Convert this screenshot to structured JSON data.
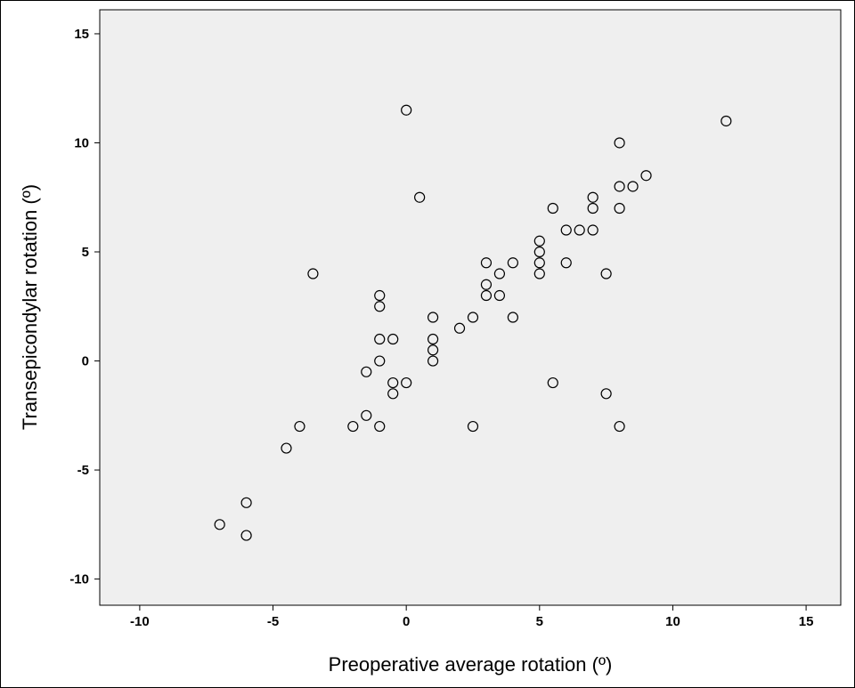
{
  "chart_data": {
    "type": "scatter",
    "title": "",
    "xlabel": "Preoperative average rotation (º)",
    "ylabel": "Transepicondylar rotation (º)",
    "xlim": [
      -11.5,
      16.3
    ],
    "ylim": [
      -11.2,
      16.1
    ],
    "x_ticks": [
      -10,
      -5,
      0,
      5,
      10,
      15
    ],
    "y_ticks": [
      -10,
      -5,
      0,
      5,
      10,
      15
    ],
    "x_tick_labels": [
      "-10",
      "-5",
      "0",
      "5",
      "10",
      "15"
    ],
    "y_tick_labels": [
      "-10",
      "-5",
      "0",
      "5",
      "10",
      "15"
    ],
    "grid": false,
    "marker": "open-circle",
    "plot_background": "#efefef",
    "marker_color": "#000000",
    "points": [
      {
        "x": 0,
        "y": 11.5
      },
      {
        "x": 12,
        "y": 11
      },
      {
        "x": 8,
        "y": 10
      },
      {
        "x": 9,
        "y": 8.5
      },
      {
        "x": 8,
        "y": 8
      },
      {
        "x": 8.5,
        "y": 8
      },
      {
        "x": 0.5,
        "y": 7.5
      },
      {
        "x": 7,
        "y": 7.5
      },
      {
        "x": 5.5,
        "y": 7
      },
      {
        "x": 7,
        "y": 7
      },
      {
        "x": 8,
        "y": 7
      },
      {
        "x": 6,
        "y": 6
      },
      {
        "x": 6.5,
        "y": 6
      },
      {
        "x": 7,
        "y": 6
      },
      {
        "x": 5,
        "y": 5.5
      },
      {
        "x": 5,
        "y": 5
      },
      {
        "x": 3,
        "y": 4.5
      },
      {
        "x": 4,
        "y": 4.5
      },
      {
        "x": 5,
        "y": 4.5
      },
      {
        "x": 6,
        "y": 4.5
      },
      {
        "x": -3.5,
        "y": 4
      },
      {
        "x": 3.5,
        "y": 4
      },
      {
        "x": 5,
        "y": 4
      },
      {
        "x": 7.5,
        "y": 4
      },
      {
        "x": 3,
        "y": 3.5
      },
      {
        "x": -1,
        "y": 3
      },
      {
        "x": 3,
        "y": 3
      },
      {
        "x": 3.5,
        "y": 3
      },
      {
        "x": -1,
        "y": 2.5
      },
      {
        "x": 1,
        "y": 2
      },
      {
        "x": 2.5,
        "y": 2
      },
      {
        "x": 4,
        "y": 2
      },
      {
        "x": 2,
        "y": 1.5
      },
      {
        "x": -1,
        "y": 1
      },
      {
        "x": -0.5,
        "y": 1
      },
      {
        "x": 1,
        "y": 1
      },
      {
        "x": 1,
        "y": 0.5
      },
      {
        "x": -1,
        "y": 0
      },
      {
        "x": 1,
        "y": 0
      },
      {
        "x": -1.5,
        "y": -0.5
      },
      {
        "x": -0.5,
        "y": -1
      },
      {
        "x": 0,
        "y": -1
      },
      {
        "x": 5.5,
        "y": -1
      },
      {
        "x": -0.5,
        "y": -1.5
      },
      {
        "x": 7.5,
        "y": -1.5
      },
      {
        "x": -1.5,
        "y": -2.5
      },
      {
        "x": -4,
        "y": -3
      },
      {
        "x": -2,
        "y": -3
      },
      {
        "x": -1,
        "y": -3
      },
      {
        "x": 2.5,
        "y": -3
      },
      {
        "x": 8,
        "y": -3
      },
      {
        "x": -4.5,
        "y": -4
      },
      {
        "x": -6,
        "y": -6.5
      },
      {
        "x": -7,
        "y": -7.5
      },
      {
        "x": -6,
        "y": -8
      }
    ]
  }
}
